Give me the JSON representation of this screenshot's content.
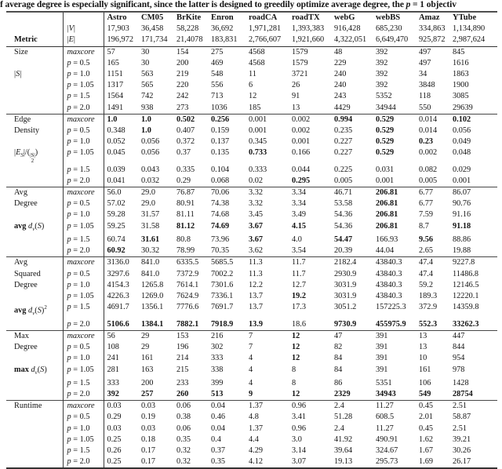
{
  "caption": {
    "pre": "f average degree is especially significant, since the latter is designed to greedily optimize average degree, the ",
    "var": "p",
    "post": " = 1 objectiv"
  },
  "formulas": {
    "S": [
      {
        "t": "|"
      },
      {
        "t": "S",
        "i": true
      },
      {
        "t": "|"
      }
    ],
    "ES": [
      {
        "t": "|"
      },
      {
        "t": "E",
        "i": true
      },
      {
        "t": "S",
        "i": true,
        "sub": true
      },
      {
        "t": "|/"
      },
      {
        "t": "("
      },
      {
        "binom": {
          "top": "|S|",
          "bot": "2"
        }
      },
      {
        "t": ")"
      }
    ],
    "avgd": [
      {
        "t": "avg ",
        "b": true
      },
      {
        "t": "d",
        "i": true
      },
      {
        "t": "v",
        "i": true,
        "sub": true
      },
      {
        "t": "("
      },
      {
        "t": "S",
        "i": true
      },
      {
        "t": ")"
      }
    ],
    "avgd2": [
      {
        "t": "avg ",
        "b": true
      },
      {
        "t": "d",
        "i": true
      },
      {
        "t": "v",
        "i": true,
        "sub": true
      },
      {
        "t": "("
      },
      {
        "t": "S",
        "i": true
      },
      {
        "t": ")"
      },
      {
        "t": "2",
        "sup": true
      }
    ],
    "maxd": [
      {
        "t": "max ",
        "b": true
      },
      {
        "t": "d",
        "i": true
      },
      {
        "t": "v",
        "i": true,
        "sub": true
      },
      {
        "t": "("
      },
      {
        "t": "S",
        "i": true
      },
      {
        "t": ")"
      }
    ]
  },
  "table": {
    "corner_label": "Metric",
    "vertices_label": "|V|",
    "edges_label": "|E|",
    "datasets": [
      "Astro",
      "CM05",
      "BrKite",
      "Enron",
      "roadCA",
      "roadTX",
      "webG",
      "webBS",
      "Amaz",
      "YTube"
    ],
    "vertices": [
      "17,903",
      "36,458",
      "58,228",
      "36,692",
      "1,971,281",
      "1,393,383",
      "916,428",
      "685,230",
      "334,863",
      "1,134,890"
    ],
    "edges": [
      "196,972",
      "171,734",
      "21,4078",
      "183,831",
      "2,766,607",
      "1,921,660",
      "4,322,051",
      "6,649,470",
      "925,872",
      "2,987,624"
    ],
    "row_labels": [
      "maxcore",
      "p = 0.5",
      "p = 1.0",
      "p = 1.05",
      "p = 1.5",
      "p = 2.0"
    ],
    "sections": [
      {
        "name": "Size",
        "label_lines": [
          [
            0,
            "Size"
          ]
        ],
        "formula_row": 2,
        "formula": "S",
        "rows": [
          {
            "values": [
              "57",
              "30",
              "154",
              "275",
              "4568",
              "1579",
              "48",
              "392",
              "497",
              "845"
            ],
            "bold": []
          },
          {
            "values": [
              "165",
              "30",
              "200",
              "469",
              "4568",
              "1579",
              "229",
              "392",
              "497",
              "1616"
            ],
            "bold": []
          },
          {
            "values": [
              "1151",
              "563",
              "219",
              "548",
              "11",
              "3721",
              "240",
              "392",
              "34",
              "1863"
            ],
            "bold": []
          },
          {
            "values": [
              "1317",
              "565",
              "220",
              "556",
              "6",
              "26",
              "240",
              "392",
              "3848",
              "1900"
            ],
            "bold": []
          },
          {
            "values": [
              "1564",
              "742",
              "242",
              "713",
              "12",
              "91",
              "243",
              "5352",
              "118",
              "3085"
            ],
            "bold": []
          },
          {
            "values": [
              "1491",
              "938",
              "273",
              "1036",
              "185",
              "13",
              "4429",
              "34944",
              "550",
              "29639"
            ],
            "bold": []
          }
        ]
      },
      {
        "name": "Edge Density",
        "label_lines": [
          [
            0,
            "Edge"
          ],
          [
            1,
            "Density"
          ]
        ],
        "formula_row": 3,
        "formula": "ES",
        "rows": [
          {
            "values": [
              "1.0",
              "1.0",
              "0.502",
              "0.256",
              "0.001",
              "0.002",
              "0.994",
              "0.529",
              "0.014",
              "0.102"
            ],
            "bold": [
              0,
              1,
              2,
              3,
              6,
              7,
              9
            ]
          },
          {
            "values": [
              "0.348",
              "1.0",
              "0.407",
              "0.159",
              "0.001",
              "0.002",
              "0.235",
              "0.529",
              "0.014",
              "0.056"
            ],
            "bold": [
              1,
              7
            ]
          },
          {
            "values": [
              "0.052",
              "0.056",
              "0.372",
              "0.137",
              "0.345",
              "0.001",
              "0.227",
              "0.529",
              "0.23",
              "0.049"
            ],
            "bold": [
              7,
              8
            ]
          },
          {
            "values": [
              "0.045",
              "0.056",
              "0.37",
              "0.135",
              "0.733",
              "0.166",
              "0.227",
              "0.529",
              "0.002",
              "0.048"
            ],
            "bold": [
              4,
              7
            ]
          },
          {
            "values": [
              "0.039",
              "0.043",
              "0.335",
              "0.104",
              "0.333",
              "0.044",
              "0.225",
              "0.031",
              "0.082",
              "0.029"
            ],
            "bold": []
          },
          {
            "values": [
              "0.041",
              "0.032",
              "0.29",
              "0.068",
              "0.02",
              "0.295",
              "0.005",
              "0.001",
              "0.005",
              "0.001"
            ],
            "bold": [
              5
            ]
          }
        ]
      },
      {
        "name": "Avg Degree",
        "label_lines": [
          [
            0,
            "Avg"
          ],
          [
            1,
            "Degree"
          ]
        ],
        "formula_row": 3,
        "formula": "avgd",
        "rows": [
          {
            "values": [
              "56.0",
              "29.0",
              "76.87",
              "70.06",
              "3.32",
              "3.34",
              "46.71",
              "206.81",
              "6.77",
              "86.07"
            ],
            "bold": [
              7
            ]
          },
          {
            "values": [
              "57.02",
              "29.0",
              "80.91",
              "74.38",
              "3.32",
              "3.34",
              "53.58",
              "206.81",
              "6.77",
              "90.76"
            ],
            "bold": [
              7
            ]
          },
          {
            "values": [
              "59.28",
              "31.57",
              "81.11",
              "74.68",
              "3.45",
              "3.49",
              "54.36",
              "206.81",
              "7.59",
              "91.16"
            ],
            "bold": [
              7
            ]
          },
          {
            "values": [
              "59.25",
              "31.58",
              "81.12",
              "74.69",
              "3.67",
              "4.15",
              "54.36",
              "206.81",
              "8.7",
              "91.18"
            ],
            "bold": [
              2,
              3,
              4,
              5,
              7,
              9
            ]
          },
          {
            "values": [
              "60.74",
              "31.61",
              "80.8",
              "73.96",
              "3.67",
              "4.0",
              "54.47",
              "166.93",
              "9.56",
              "88.86"
            ],
            "bold": [
              1,
              4,
              6,
              8
            ]
          },
          {
            "values": [
              "60.92",
              "30.32",
              "78.99",
              "70.35",
              "3.62",
              "3.54",
              "20.39",
              "44.04",
              "2.65",
              "19.88"
            ],
            "bold": [
              0
            ]
          }
        ]
      },
      {
        "name": "Avg Squared Degree",
        "label_lines": [
          [
            0,
            "Avg"
          ],
          [
            1,
            "Squared"
          ],
          [
            2,
            "Degree"
          ]
        ],
        "formula_row": 4,
        "formula": "avgd2",
        "rows": [
          {
            "values": [
              "3136.0",
              "841.0",
              "6335.5",
              "5685.5",
              "11.3",
              "11.7",
              "2182.4",
              "43840.3",
              "47.4",
              "9227.8"
            ],
            "bold": []
          },
          {
            "values": [
              "3297.6",
              "841.0",
              "7372.9",
              "7002.2",
              "11.3",
              "11.7",
              "2930.9",
              "43840.3",
              "47.4",
              "11486.8"
            ],
            "bold": []
          },
          {
            "values": [
              "4154.3",
              "1265.8",
              "7614.1",
              "7301.6",
              "12.2",
              "12.7",
              "3031.9",
              "43840.3",
              "59.2",
              "12146.5"
            ],
            "bold": []
          },
          {
            "values": [
              "4226.3",
              "1269.0",
              "7624.9",
              "7336.1",
              "13.7",
              "19.2",
              "3031.9",
              "43840.3",
              "189.3",
              "12220.1"
            ],
            "bold": [
              5
            ]
          },
          {
            "values": [
              "4691.7",
              "1356.1",
              "7776.6",
              "7691.7",
              "13.7",
              "17.3",
              "3051.2",
              "157225.3",
              "372.9",
              "14359.8"
            ],
            "bold": []
          },
          {
            "values": [
              "5106.6",
              "1384.1",
              "7882.1",
              "7918.9",
              "13.9",
              "18.6",
              "9730.9",
              "455975.9",
              "552.3",
              "33262.3"
            ],
            "bold": [
              0,
              1,
              2,
              3,
              4,
              6,
              7,
              8,
              9
            ]
          }
        ]
      },
      {
        "name": "Max Degree",
        "label_lines": [
          [
            0,
            "Max"
          ],
          [
            1,
            "Degree"
          ]
        ],
        "formula_row": 3,
        "formula": "maxd",
        "rows": [
          {
            "values": [
              "56",
              "29",
              "153",
              "216",
              "7",
              "12",
              "47",
              "391",
              "13",
              "447"
            ],
            "bold": [
              5
            ]
          },
          {
            "values": [
              "108",
              "29",
              "196",
              "302",
              "7",
              "12",
              "82",
              "391",
              "13",
              "844"
            ],
            "bold": [
              5
            ]
          },
          {
            "values": [
              "241",
              "161",
              "214",
              "333",
              "4",
              "12",
              "84",
              "391",
              "10",
              "954"
            ],
            "bold": [
              5
            ]
          },
          {
            "values": [
              "281",
              "163",
              "215",
              "338",
              "4",
              "8",
              "84",
              "391",
              "161",
              "978"
            ],
            "bold": []
          },
          {
            "values": [
              "333",
              "200",
              "233",
              "399",
              "4",
              "8",
              "86",
              "5351",
              "106",
              "1428"
            ],
            "bold": []
          },
          {
            "values": [
              "392",
              "257",
              "260",
              "513",
              "9",
              "12",
              "2329",
              "34943",
              "549",
              "28754"
            ],
            "bold": [
              0,
              1,
              2,
              3,
              4,
              5,
              6,
              7,
              8,
              9
            ]
          }
        ]
      },
      {
        "name": "Runtime",
        "label_lines": [
          [
            0,
            "Runtime"
          ]
        ],
        "formula_row": -1,
        "formula": "",
        "rows": [
          {
            "values": [
              "0.03",
              "0.03",
              "0.06",
              "0.04",
              "1.37",
              "0.96",
              "2.4",
              "11.27",
              "0.45",
              "2.51"
            ],
            "bold": []
          },
          {
            "values": [
              "0.29",
              "0.19",
              "0.38",
              "0.46",
              "4.8",
              "3.41",
              "51.28",
              "608.5",
              "2.01",
              "58.87"
            ],
            "bold": []
          },
          {
            "values": [
              "0.03",
              "0.03",
              "0.06",
              "0.04",
              "1.37",
              "0.96",
              "2.4",
              "11.27",
              "0.45",
              "2.51"
            ],
            "bold": []
          },
          {
            "values": [
              "0.25",
              "0.18",
              "0.35",
              "0.4",
              "4.4",
              "3.0",
              "41.92",
              "490.91",
              "1.62",
              "39.21"
            ],
            "bold": []
          },
          {
            "values": [
              "0.26",
              "0.17",
              "0.32",
              "0.37",
              "4.29",
              "3.14",
              "39.64",
              "324.67",
              "1.67",
              "30.26"
            ],
            "bold": []
          },
          {
            "values": [
              "0.25",
              "0.17",
              "0.32",
              "0.35",
              "4.12",
              "3.07",
              "19.13",
              "295.73",
              "1.69",
              "26.17"
            ],
            "bold": []
          }
        ]
      }
    ]
  }
}
